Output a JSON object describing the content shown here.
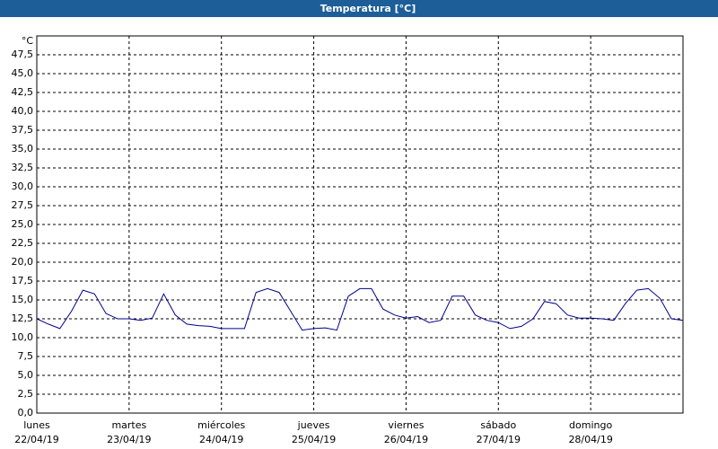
{
  "chart_data": {
    "type": "line",
    "title": "Temperatura [°C]",
    "y_unit": "°C",
    "ylim": [
      0,
      50
    ],
    "yticks": [
      {
        "value": 0,
        "label": "0,0"
      },
      {
        "value": 2.5,
        "label": "2,5"
      },
      {
        "value": 5,
        "label": "5,0"
      },
      {
        "value": 7.5,
        "label": "7,5"
      },
      {
        "value": 10,
        "label": "10,0"
      },
      {
        "value": 12.5,
        "label": "12,5"
      },
      {
        "value": 15,
        "label": "15,0"
      },
      {
        "value": 17.5,
        "label": "17,5"
      },
      {
        "value": 20,
        "label": "20,0"
      },
      {
        "value": 22.5,
        "label": "22,5"
      },
      {
        "value": 25,
        "label": "25,0"
      },
      {
        "value": 27.5,
        "label": "27,5"
      },
      {
        "value": 30,
        "label": "30,0"
      },
      {
        "value": 32.5,
        "label": "32,5"
      },
      {
        "value": 35,
        "label": "35,0"
      },
      {
        "value": 37.5,
        "label": "37,5"
      },
      {
        "value": 40,
        "label": "40,0"
      },
      {
        "value": 42.5,
        "label": "42,5"
      },
      {
        "value": 45,
        "label": "45,0"
      },
      {
        "value": 47.5,
        "label": "47,5"
      }
    ],
    "days": [
      {
        "name": "lunes",
        "date": "22/04/19"
      },
      {
        "name": "martes",
        "date": "23/04/19"
      },
      {
        "name": "miércoles",
        "date": "24/04/19"
      },
      {
        "name": "jueves",
        "date": "25/04/19"
      },
      {
        "name": "viernes",
        "date": "26/04/19"
      },
      {
        "name": "sábado",
        "date": "27/04/19"
      },
      {
        "name": "domingo",
        "date": "28/04/19"
      }
    ],
    "grid": true,
    "series": [
      {
        "color": "#00008b",
        "values": [
          12.5,
          11.8,
          11.2,
          13.5,
          16.3,
          15.8,
          13.2,
          12.5,
          12.5,
          12.3,
          12.6,
          15.8,
          13.0,
          11.8,
          11.6,
          11.5,
          11.2,
          11.2,
          11.2,
          16.0,
          16.5,
          16.0,
          13.5,
          11.0,
          11.2,
          11.3,
          11.0,
          15.5,
          16.5,
          16.5,
          13.8,
          13.0,
          12.6,
          12.8,
          12.0,
          12.3,
          15.5,
          15.5,
          13.0,
          12.3,
          12.0,
          11.2,
          11.5,
          12.5,
          14.8,
          14.5,
          13.0,
          12.6,
          12.6,
          12.5,
          12.3,
          14.5,
          16.3,
          16.5,
          15.2,
          12.5,
          12.3
        ]
      }
    ]
  }
}
